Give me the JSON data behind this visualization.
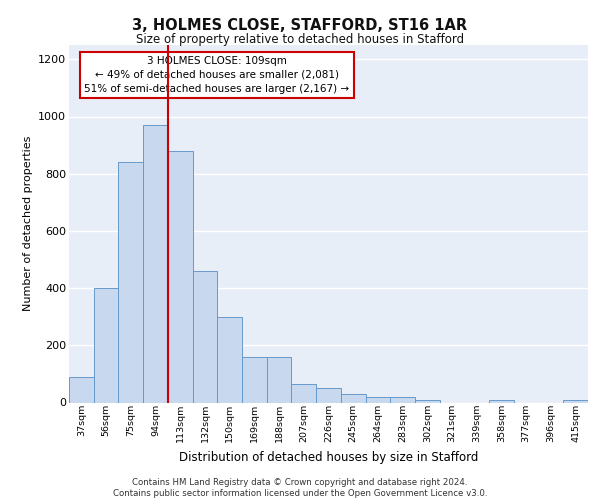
{
  "title": "3, HOLMES CLOSE, STAFFORD, ST16 1AR",
  "subtitle": "Size of property relative to detached houses in Stafford",
  "xlabel": "Distribution of detached houses by size in Stafford",
  "ylabel": "Number of detached properties",
  "categories": [
    "37sqm",
    "56sqm",
    "75sqm",
    "94sqm",
    "113sqm",
    "132sqm",
    "150sqm",
    "169sqm",
    "188sqm",
    "207sqm",
    "226sqm",
    "245sqm",
    "264sqm",
    "283sqm",
    "302sqm",
    "321sqm",
    "339sqm",
    "358sqm",
    "377sqm",
    "396sqm",
    "415sqm"
  ],
  "values": [
    90,
    400,
    840,
    970,
    880,
    460,
    300,
    160,
    160,
    65,
    50,
    30,
    20,
    20,
    10,
    0,
    0,
    10,
    0,
    0,
    10
  ],
  "bar_color": "#c8d9ef",
  "bar_edge_color": "#6699cc",
  "background_color": "#e8eef8",
  "grid_color": "#ffffff",
  "vline_color": "#cc0000",
  "vline_x": 3.5,
  "annotation_text": "3 HOLMES CLOSE: 109sqm\n← 49% of detached houses are smaller (2,081)\n51% of semi-detached houses are larger (2,167) →",
  "annotation_box_color": "#ffffff",
  "annotation_box_edge_color": "#cc0000",
  "footer_text": "Contains HM Land Registry data © Crown copyright and database right 2024.\nContains public sector information licensed under the Open Government Licence v3.0.",
  "ylim": [
    0,
    1250
  ],
  "yticks": [
    0,
    200,
    400,
    600,
    800,
    1000,
    1200
  ]
}
